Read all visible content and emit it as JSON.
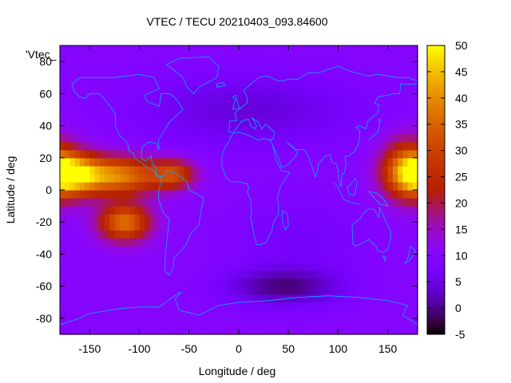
{
  "chart_data": {
    "type": "heatmap",
    "title": "VTEC / TECU 20210403_093.84600",
    "xlabel": "Longitude / deg",
    "ylabel": "Latitude / deg",
    "legend_key": "'Vtec_",
    "xlim": [
      -180,
      180
    ],
    "ylim": [
      -90,
      90
    ],
    "x_ticks": [
      -150,
      -100,
      -50,
      0,
      50,
      100,
      150
    ],
    "y_ticks": [
      -80,
      -60,
      -40,
      -20,
      0,
      20,
      40,
      60,
      80
    ],
    "colorbar": {
      "range": [
        -5,
        50
      ],
      "ticks": [
        -5,
        0,
        5,
        10,
        15,
        20,
        25,
        30,
        35,
        40,
        45,
        50
      ],
      "palette": "black-purple-red-orange-yellow"
    },
    "background_level": 10,
    "features": [
      {
        "lon": -170,
        "lat": 10,
        "sigma_lon": 22,
        "sigma_lat": 9,
        "amp": 33
      },
      {
        "lon": -120,
        "lat": 9,
        "sigma_lon": 30,
        "sigma_lat": 8,
        "amp": 28
      },
      {
        "lon": -65,
        "lat": 10,
        "sigma_lon": 15,
        "sigma_lat": 6,
        "amp": 18
      },
      {
        "lon": -115,
        "lat": -20,
        "sigma_lon": 18,
        "sigma_lat": 8,
        "amp": 27
      },
      {
        "lon": 170,
        "lat": 13,
        "sigma_lon": 18,
        "sigma_lat": 13,
        "amp": 23
      },
      {
        "lon": 45,
        "lat": -60,
        "sigma_lon": 40,
        "sigma_lat": 8,
        "amp": -10
      },
      {
        "lon": 10,
        "lat": 50,
        "sigma_lon": 80,
        "sigma_lat": 16,
        "amp": -6
      },
      {
        "lon": 60,
        "lat": -30,
        "sigma_lon": 50,
        "sigma_lat": 20,
        "amp": -3
      }
    ],
    "coastline_color": "#0ea7ff"
  }
}
